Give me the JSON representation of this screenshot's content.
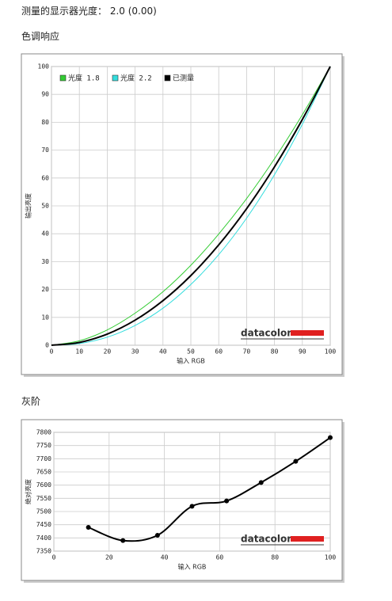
{
  "header": {
    "title": "测量的显示器光度： 2.0 (0.00)"
  },
  "sections": [
    "色调响应",
    "灰阶"
  ],
  "chart_data": [
    {
      "type": "line",
      "xlabel": "输入 RGB",
      "ylabel": "输出亮度",
      "watermark": "datacolor",
      "x": [
        0,
        10,
        20,
        30,
        40,
        50,
        60,
        70,
        80,
        90,
        100
      ],
      "xlim": [
        0,
        100
      ],
      "ylim": [
        0,
        100
      ],
      "xticks": [
        0,
        10,
        20,
        30,
        40,
        50,
        60,
        70,
        80,
        90,
        100
      ],
      "yticks": [
        0,
        10,
        20,
        30,
        40,
        50,
        60,
        70,
        80,
        90,
        100
      ],
      "grid": true,
      "legend": "top-left",
      "series": [
        {
          "name": "光度 1.8",
          "color": "#33cc33",
          "values": [
            0,
            1.6,
            5.5,
            11.5,
            19.2,
            28.7,
            39.9,
            52.6,
            66.9,
            82.7,
            100
          ]
        },
        {
          "name": "光度 2.2",
          "color": "#33dddd",
          "values": [
            0,
            0.6,
            2.9,
            7.1,
            13.3,
            21.8,
            32.5,
            45.6,
            61.2,
            79.3,
            100
          ]
        },
        {
          "name": "已测量",
          "color": "#000000",
          "values": [
            0,
            1,
            4,
            9,
            16,
            25,
            36,
            49,
            64,
            81,
            100
          ]
        }
      ]
    },
    {
      "type": "line",
      "xlabel": "输入 RGB",
      "ylabel": "绝对亮度",
      "watermark": "datacolor",
      "x": [
        12.5,
        25,
        37.5,
        50,
        62.5,
        75,
        87.5,
        100
      ],
      "values": [
        7440,
        7390,
        7410,
        7520,
        7540,
        7610,
        7690,
        7780
      ],
      "color": "#000000",
      "markers": true,
      "xlim": [
        0,
        100
      ],
      "ylim": [
        7350,
        7800
      ],
      "xticks": [
        0,
        20,
        40,
        60,
        80,
        100
      ],
      "yticks": [
        7350,
        7400,
        7450,
        7500,
        7550,
        7600,
        7650,
        7700,
        7750,
        7800
      ],
      "grid": true
    }
  ]
}
